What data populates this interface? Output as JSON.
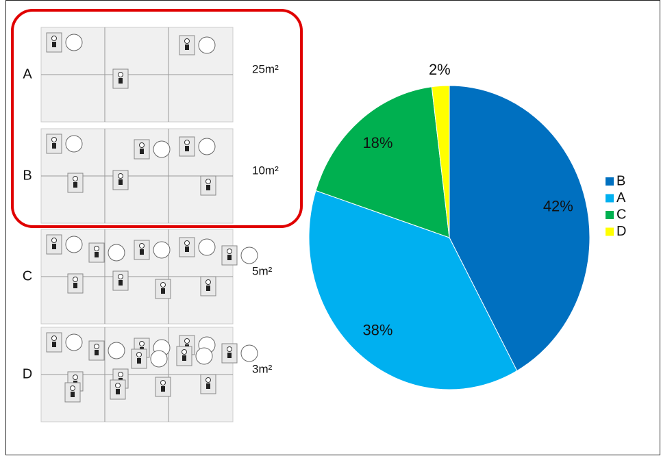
{
  "panels": [
    {
      "label": "A",
      "area": "25m²"
    },
    {
      "label": "B",
      "area": "10m²"
    },
    {
      "label": "C",
      "area": "5m²"
    },
    {
      "label": "D",
      "area": "3m²"
    }
  ],
  "chart_data": {
    "type": "pie",
    "categories": [
      "B",
      "A",
      "C",
      "D"
    ],
    "values": [
      42,
      38,
      18,
      2
    ],
    "value_labels": [
      "42%",
      "38%",
      "18%",
      "2%"
    ],
    "colors": [
      "#0070c0",
      "#00b0f0",
      "#00b050",
      "#ffff00"
    ]
  }
}
